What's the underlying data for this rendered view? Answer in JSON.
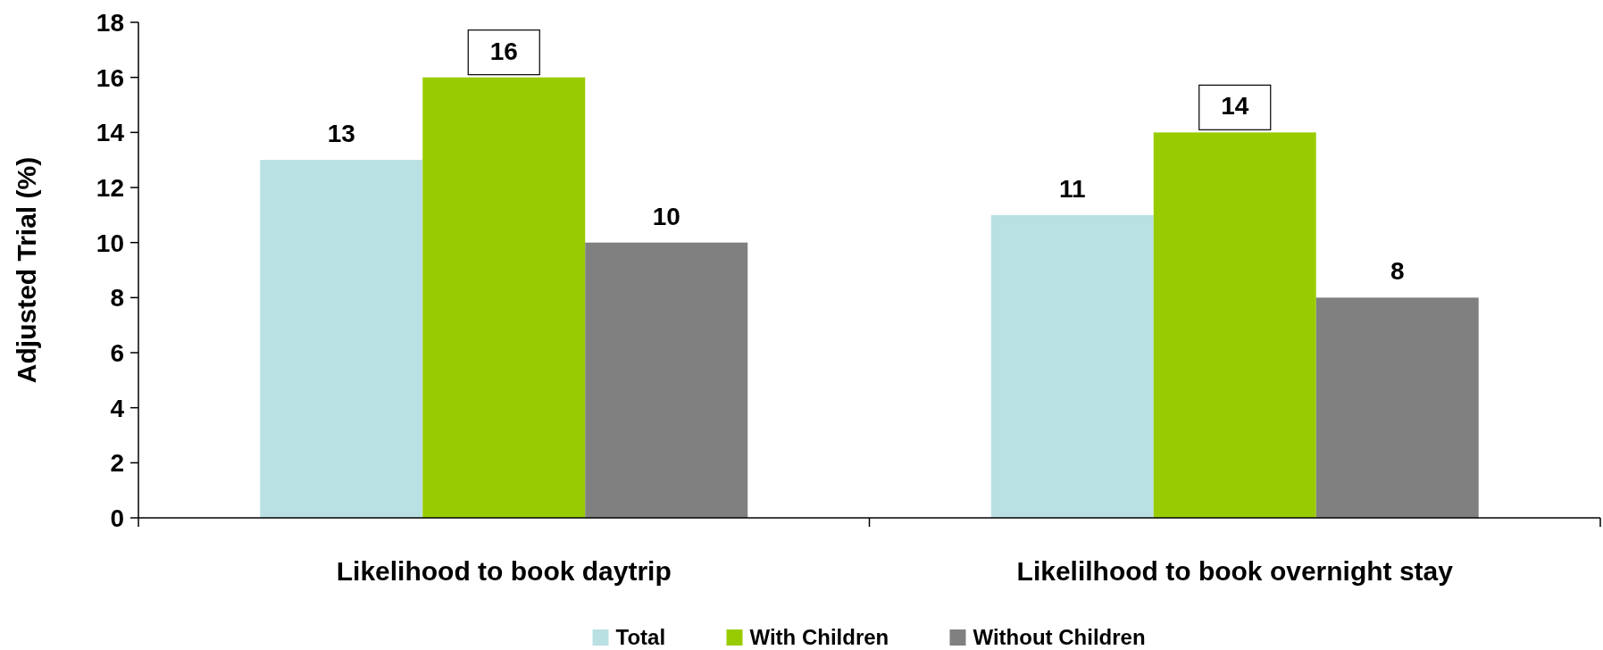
{
  "chart_data": {
    "type": "bar",
    "ylabel": "Adjusted Trial (%)",
    "categories": [
      "Likelihood to book daytrip",
      "Likelilhood to book overnight stay"
    ],
    "series": [
      {
        "name": "Total",
        "color": "#b9e0e3",
        "values": [
          13,
          11
        ]
      },
      {
        "name": "With Children",
        "color": "#99cc00",
        "values": [
          16,
          14
        ]
      },
      {
        "name": "Without Children",
        "color": "#808080",
        "values": [
          10,
          8
        ]
      }
    ],
    "ylim": [
      0,
      18
    ],
    "yticks": [
      0,
      2,
      4,
      6,
      8,
      10,
      12,
      14,
      16,
      18
    ],
    "data_labels": true,
    "legend": "bottom",
    "grid": false
  }
}
